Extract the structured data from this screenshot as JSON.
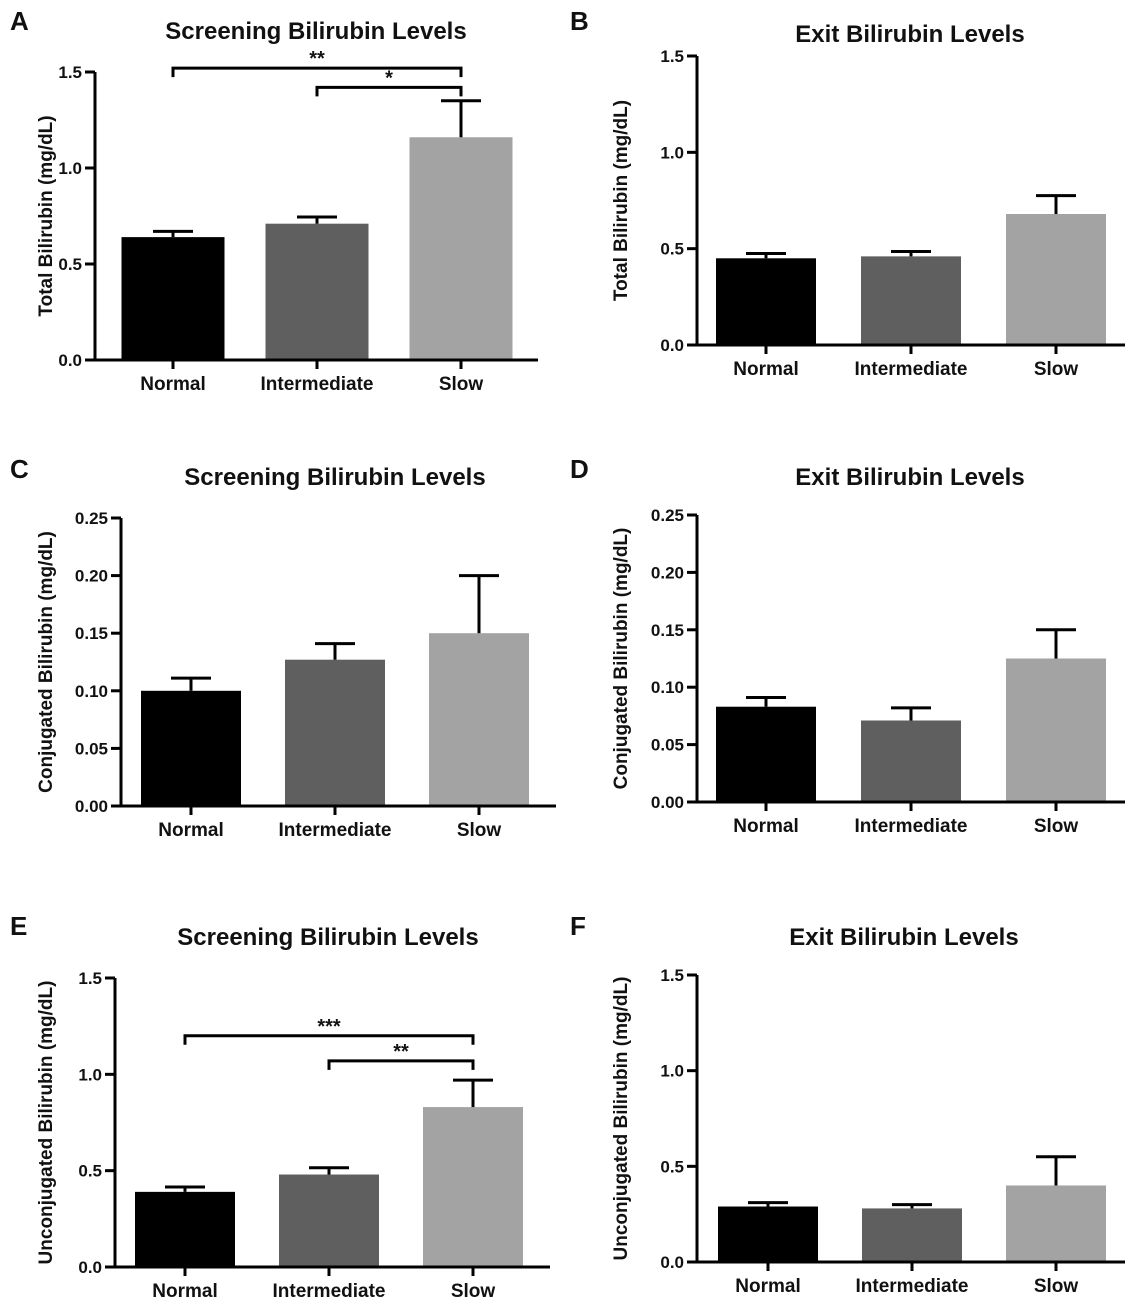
{
  "chart_data": [
    {
      "panel": "A",
      "type": "bar",
      "title": "Screening Bilirubin Levels",
      "xlabel": "",
      "ylabel": "Total Bilirubin (mg/dL)",
      "categories": [
        "Normal",
        "Intermediate",
        "Slow"
      ],
      "values": [
        0.64,
        0.71,
        1.16
      ],
      "errors": [
        0.03,
        0.035,
        0.19
      ],
      "ylim": [
        0,
        1.5
      ],
      "yticks": [
        0.0,
        0.5,
        1.0,
        1.5
      ],
      "ytick_labels": [
        "0.0",
        "0.5",
        "1.0",
        "1.5"
      ],
      "colors": [
        "#000000",
        "#5f5f5f",
        "#a3a3a3"
      ],
      "significance": [
        {
          "from": 0,
          "to": 2,
          "label": "**",
          "level": 1.52
        },
        {
          "from": 1,
          "to": 2,
          "label": "*",
          "level": 1.42
        }
      ]
    },
    {
      "panel": "B",
      "type": "bar",
      "title": "Exit Bilirubin Levels",
      "xlabel": "",
      "ylabel": "Total Bilirubin (mg/dL)",
      "categories": [
        "Normal",
        "Intermediate",
        "Slow"
      ],
      "values": [
        0.45,
        0.46,
        0.68
      ],
      "errors": [
        0.025,
        0.025,
        0.095
      ],
      "ylim": [
        0,
        1.5
      ],
      "yticks": [
        0.0,
        0.5,
        1.0,
        1.5
      ],
      "ytick_labels": [
        "0.0",
        "0.5",
        "1.0",
        "1.5"
      ],
      "colors": [
        "#000000",
        "#5f5f5f",
        "#a3a3a3"
      ],
      "significance": []
    },
    {
      "panel": "C",
      "type": "bar",
      "title": "Screening Bilirubin Levels",
      "xlabel": "",
      "ylabel": "Conjugated Bilirubin (mg/dL)",
      "categories": [
        "Normal",
        "Intermediate",
        "Slow"
      ],
      "values": [
        0.1,
        0.127,
        0.15
      ],
      "errors": [
        0.011,
        0.014,
        0.05
      ],
      "ylim": [
        0,
        0.25
      ],
      "yticks": [
        0.0,
        0.05,
        0.1,
        0.15,
        0.2,
        0.25
      ],
      "ytick_labels": [
        "0.00",
        "0.05",
        "0.10",
        "0.15",
        "0.20",
        "0.25"
      ],
      "colors": [
        "#000000",
        "#5f5f5f",
        "#a3a3a3"
      ],
      "significance": []
    },
    {
      "panel": "D",
      "type": "bar",
      "title": "Exit Bilirubin Levels",
      "xlabel": "",
      "ylabel": "Conjugated Bilirubin (mg/dL)",
      "categories": [
        "Normal",
        "Intermediate",
        "Slow"
      ],
      "values": [
        0.083,
        0.071,
        0.125
      ],
      "errors": [
        0.008,
        0.011,
        0.025
      ],
      "ylim": [
        0,
        0.25
      ],
      "yticks": [
        0.0,
        0.05,
        0.1,
        0.15,
        0.2,
        0.25
      ],
      "ytick_labels": [
        "0.00",
        "0.05",
        "0.10",
        "0.15",
        "0.20",
        "0.25"
      ],
      "colors": [
        "#000000",
        "#5f5f5f",
        "#a3a3a3"
      ],
      "significance": []
    },
    {
      "panel": "E",
      "type": "bar",
      "title": "Screening Bilirubin Levels",
      "xlabel": "",
      "ylabel": "Unconjugated Bilirubin (mg/dL)",
      "categories": [
        "Normal",
        "Intermediate",
        "Slow"
      ],
      "values": [
        0.39,
        0.48,
        0.83
      ],
      "errors": [
        0.025,
        0.035,
        0.14
      ],
      "ylim": [
        0,
        1.5
      ],
      "yticks": [
        0.0,
        0.5,
        1.0,
        1.5
      ],
      "ytick_labels": [
        "0.0",
        "0.5",
        "1.0",
        "1.5"
      ],
      "colors": [
        "#000000",
        "#5f5f5f",
        "#a3a3a3"
      ],
      "significance": [
        {
          "from": 0,
          "to": 2,
          "label": "***",
          "level": 1.2
        },
        {
          "from": 1,
          "to": 2,
          "label": "**",
          "level": 1.07
        }
      ]
    },
    {
      "panel": "F",
      "type": "bar",
      "title": "Exit Bilirubin Levels",
      "xlabel": "",
      "ylabel": "Unconjugated Bilirubin (mg/dL)",
      "categories": [
        "Normal",
        "Intermediate",
        "Slow"
      ],
      "values": [
        0.29,
        0.28,
        0.4
      ],
      "errors": [
        0.02,
        0.02,
        0.15
      ],
      "ylim": [
        0,
        1.5
      ],
      "yticks": [
        0.0,
        0.5,
        1.0,
        1.5
      ],
      "ytick_labels": [
        "0.0",
        "0.5",
        "1.0",
        "1.5"
      ],
      "colors": [
        "#000000",
        "#5f5f5f",
        "#a3a3a3"
      ],
      "significance": []
    }
  ]
}
